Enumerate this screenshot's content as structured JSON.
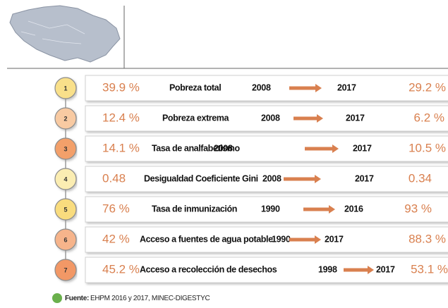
{
  "rows": [
    {
      "number": "1",
      "start": "39.9 %",
      "label": "Pobreza total",
      "from": "2008",
      "to": "2017",
      "end": "29.2 %",
      "color": "#f9e08a"
    },
    {
      "number": "2",
      "start": "12.4 %",
      "label": "Pobreza extrema",
      "from": "2008",
      "to": "2017",
      "end": "6.2 %",
      "color": "#f8caa2"
    },
    {
      "number": "3",
      "start": "14.1 %",
      "label": "Tasa de analfabetismo",
      "from": "2008",
      "to": "2017",
      "end": "10.5 %",
      "color": "#f3a06b"
    },
    {
      "number": "4",
      "start": "0.48",
      "label": "Desigualdad Coeficiente Gini",
      "from": "2008",
      "to": "2017",
      "end": "0.34",
      "color": "#fbedb2"
    },
    {
      "number": "5",
      "start": "76 %",
      "label": "Tasa de inmunización",
      "from": "1990",
      "to": "2016",
      "end": "93 %",
      "color": "#f9dc7e"
    },
    {
      "number": "6",
      "start": "42 %",
      "label": "Acceso a fuentes de agua potable",
      "from": "1990",
      "to": "2017",
      "end": "88.3 %",
      "color": "#f6b48b"
    },
    {
      "number": "7",
      "start": "45.2 %",
      "label": "Acceso a recolección de desechos",
      "from": "1998",
      "to": "2017",
      "end": "53.1 %",
      "color": "#f29866"
    }
  ],
  "footer": {
    "label": "Fuente:",
    "text": "EHPM 2016 y 2017, MINEC-DIGESTYC"
  }
}
